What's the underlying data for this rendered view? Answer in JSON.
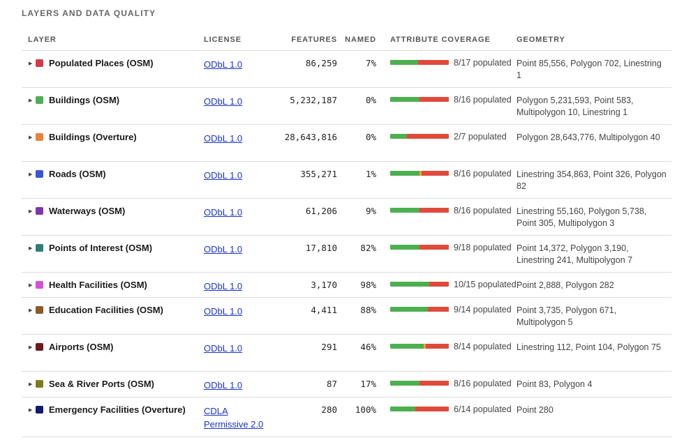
{
  "section_title": "LAYERS AND DATA QUALITY",
  "headers": {
    "layer": "LAYER",
    "license": "LICENSE",
    "features": "FEATURES",
    "named": "NAMED",
    "coverage": "ATTRIBUTE COVERAGE",
    "geometry": "GEOMETRY"
  },
  "colors": {
    "coverage_full": "#4caf50",
    "coverage_partial": "#f0a030",
    "coverage_empty": "#e04a3a"
  },
  "rows": [
    {
      "name": "Populated Places (OSM)",
      "swatch": "#d63a4a",
      "license": "ODbL 1.0",
      "features": "86,259",
      "named": "7%",
      "coverage_label": "8/17 populated",
      "coverage_full": 8,
      "coverage_partial": 0,
      "coverage_total": 17,
      "geometry": "Point 85,556, Polygon 702, Linestring 1"
    },
    {
      "name": "Buildings (OSM)",
      "swatch": "#4caf50",
      "license": "ODbL 1.0",
      "features": "5,232,187",
      "named": "0%",
      "coverage_label": "8/16 populated",
      "coverage_full": 8,
      "coverage_partial": 0,
      "coverage_total": 16,
      "geometry": "Polygon 5,231,593, Point 583, Multipolygon 10, Linestring 1"
    },
    {
      "name": "Buildings (Overture)",
      "swatch": "#e8823a",
      "license": "ODbL 1.0",
      "features": "28,643,816",
      "named": "0%",
      "coverage_label": "2/7 populated",
      "coverage_full": 2,
      "coverage_partial": 0,
      "coverage_total": 7,
      "geometry": "Polygon 28,643,776, Multipolygon 40"
    },
    {
      "name": "Roads (OSM)",
      "swatch": "#3a55d6",
      "license": "ODbL 1.0",
      "features": "355,271",
      "named": "1%",
      "coverage_label": "8/16 populated",
      "coverage_full": 8,
      "coverage_partial": 0.5,
      "coverage_total": 16,
      "geometry": "Linestring 354,863, Point 326, Polygon 82"
    },
    {
      "name": "Waterways (OSM)",
      "swatch": "#7b35b0",
      "license": "ODbL 1.0",
      "features": "61,206",
      "named": "9%",
      "coverage_label": "8/16 populated",
      "coverage_full": 8,
      "coverage_partial": 0,
      "coverage_total": 16,
      "geometry": "Linestring 55,160, Polygon 5,738, Point 305, Multipolygon 3"
    },
    {
      "name": "Points of Interest (OSM)",
      "swatch": "#2f7d75",
      "license": "ODbL 1.0",
      "features": "17,810",
      "named": "82%",
      "coverage_label": "9/18 populated",
      "coverage_full": 9,
      "coverage_partial": 0,
      "coverage_total": 18,
      "geometry": "Point 14,372, Polygon 3,190, Linestring 241, Multipolygon 7"
    },
    {
      "name": "Health Facilities (OSM)",
      "swatch": "#d84fd8",
      "license": "ODbL 1.0",
      "features": "3,170",
      "named": "98%",
      "coverage_label": "10/15 populated",
      "coverage_full": 10,
      "coverage_partial": 0,
      "coverage_total": 15,
      "geometry": "Point 2,888, Polygon 282"
    },
    {
      "name": "Education Facilities (OSM)",
      "swatch": "#8a5a2a",
      "license": "ODbL 1.0",
      "features": "4,411",
      "named": "88%",
      "coverage_label": "9/14 populated",
      "coverage_full": 9,
      "coverage_partial": 0,
      "coverage_total": 14,
      "geometry": "Point 3,735, Polygon 671, Multipolygon 5"
    },
    {
      "name": "Airports (OSM)",
      "swatch": "#6e1a1a",
      "license": "ODbL 1.0",
      "features": "291",
      "named": "46%",
      "coverage_label": "8/14 populated",
      "coverage_full": 8,
      "coverage_partial": 0.5,
      "coverage_total": 14,
      "geometry": "Linestring 112, Point 104, Polygon 75"
    },
    {
      "name": "Sea & River Ports (OSM)",
      "swatch": "#7d7d1f",
      "license": "ODbL 1.0",
      "features": "87",
      "named": "17%",
      "coverage_label": "8/16 populated",
      "coverage_full": 8,
      "coverage_partial": 0,
      "coverage_total": 16,
      "geometry": "Point 83, Polygon 4"
    },
    {
      "name": "Emergency Facilities (Overture)",
      "swatch": "#101a6e",
      "license": "CDLA Permissive 2.0",
      "features": "280",
      "named": "100%",
      "coverage_label": "6/14 populated",
      "coverage_full": 6,
      "coverage_partial": 0,
      "coverage_total": 14,
      "geometry": "Point 280"
    }
  ]
}
